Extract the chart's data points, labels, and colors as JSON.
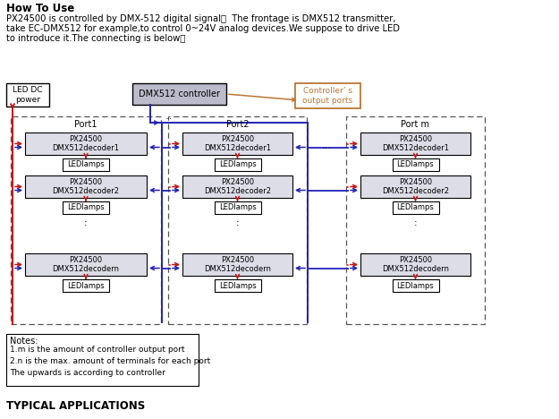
{
  "title": "How To Use",
  "para1": "PX24500 is controlled by DMX-512 digital signal，  The frontage is DMX512 transmitter,",
  "para2": "take EC-DMX512 for example,to control 0~24V analog devices.We suppose to drive LED",
  "para3": "to introduce it.The connecting is below：",
  "dmx_label": "DMX512 controller",
  "ctrl_output_label": "Controller’ s\noutput ports",
  "led_dc_label": "LED DC\npower",
  "port_labels": [
    "Port1",
    "Port2",
    "...",
    "Port m"
  ],
  "decoder_labels": [
    [
      "PX24500\nDMX512decoder1",
      "PX24500\nDMX512decoder2",
      "PX24500\nDMX512decodern"
    ],
    [
      "PX24500\nDMX512decoder1",
      "PX24500\nDMX512decoder2",
      "PX24500\nDMX512decodern"
    ],
    [
      "PX24500\nDMX512decoder1",
      "PX24500\nDMX512decoder2",
      "PX24500\nDMX512decodern"
    ]
  ],
  "led_lamp_label": "LEDlamps",
  "notes_title": "Notes:",
  "notes": [
    "1.m is the amount of controller output port",
    "2.n is the max. amount of terminals for each port",
    "The upwards is according to controller"
  ],
  "typical_label": "TYPICAL APPLICATIONS",
  "blue": "#2222BB",
  "red": "#CC1111",
  "orange": "#BB7733",
  "dec_fill": "#DDDDE8",
  "ctrl_fill": "#BBBBCC",
  "white": "#FFFFFF",
  "black": "#000000",
  "gray": "#555555"
}
